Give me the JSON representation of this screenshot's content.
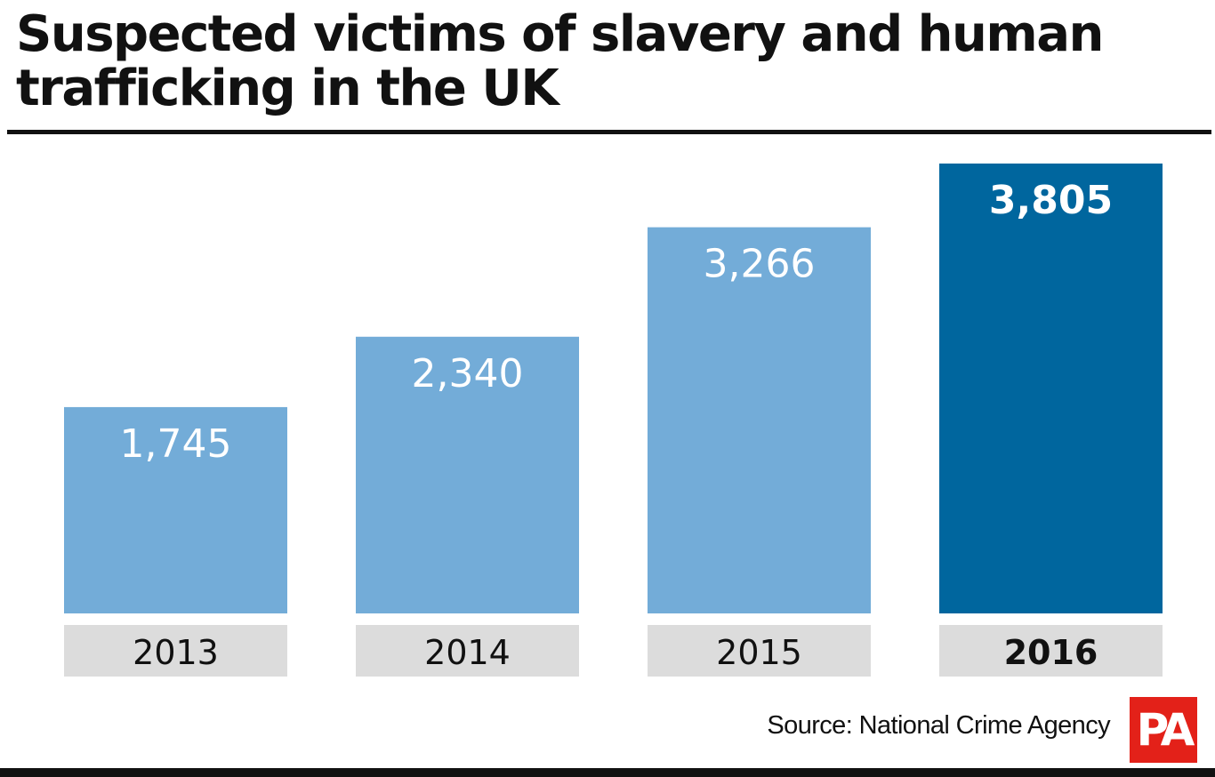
{
  "title": "Suspected victims of slavery and human trafficking in the UK",
  "source": "Source: National Crime Agency",
  "logo": "PA",
  "colors": {
    "bar": "#73acd8",
    "bar_highlight": "#00669e",
    "label_band": "#dcdcdc",
    "logo": "#e32119"
  },
  "chart_data": {
    "type": "bar",
    "title": "Suspected victims of slavery and human trafficking in the UK",
    "categories": [
      "2013",
      "2014",
      "2015",
      "2016"
    ],
    "values": [
      1745,
      2340,
      3266,
      3805
    ],
    "value_labels": [
      "1,745",
      "2,340",
      "3,266",
      "3,805"
    ],
    "highlight_index": 3,
    "xlabel": "",
    "ylabel": "",
    "grid": false
  }
}
